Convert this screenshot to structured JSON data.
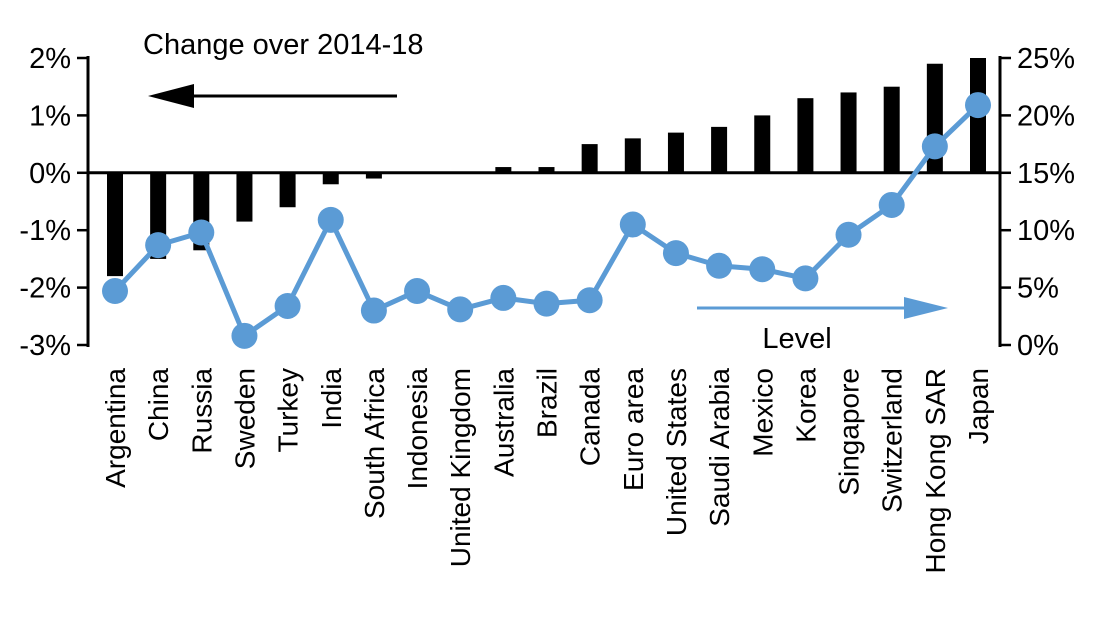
{
  "chart": {
    "background_color": "#ffffff",
    "bar_color": "#000000",
    "line_color": "#5B9BD5",
    "text_color": "#000000"
  },
  "chart_data": {
    "type": "bar+line",
    "title": "Change over 2014-18",
    "categories": [
      "Argentina",
      "China",
      "Russia",
      "Sweden",
      "Turkey",
      "India",
      "South Africa",
      "Indonesia",
      "United Kingdom",
      "Australia",
      "Brazil",
      "Canada",
      "Euro area",
      "United States",
      "Saudi Arabia",
      "Mexico",
      "Korea",
      "Singapore",
      "Switzerland",
      "Hong Kong SAR",
      "Japan"
    ],
    "series": [
      {
        "name": "Change over 2014-18",
        "type": "bar",
        "axis": "left",
        "color": "#000000",
        "values": [
          -1.8,
          -1.5,
          -1.35,
          -0.85,
          -0.6,
          -0.2,
          -0.1,
          0,
          0,
          0.1,
          0.1,
          0.5,
          0.6,
          0.7,
          0.8,
          1.0,
          1.3,
          1.4,
          1.5,
          1.9,
          2.0
        ]
      },
      {
        "name": "Level",
        "type": "line",
        "axis": "right",
        "color": "#5B9BD5",
        "values": [
          4.7,
          8.7,
          9.8,
          0.8,
          3.4,
          10.9,
          3.0,
          4.7,
          3.1,
          4.1,
          3.6,
          3.9,
          10.5,
          8.0,
          6.9,
          6.6,
          5.8,
          9.6,
          12.2,
          17.3,
          20.9
        ]
      }
    ],
    "left_axis": {
      "range": [
        -3,
        2
      ],
      "ticks": [
        {
          "label": "2%",
          "value": 2
        },
        {
          "label": "1%",
          "value": 1
        },
        {
          "label": "0%",
          "value": 0
        },
        {
          "label": "-1%",
          "value": -1
        },
        {
          "label": "-2%",
          "value": -2
        },
        {
          "label": "-3%",
          "value": -3
        }
      ]
    },
    "right_axis": {
      "range": [
        0,
        25
      ],
      "ticks": [
        {
          "label": "25%",
          "value": 25
        },
        {
          "label": "20%",
          "value": 20
        },
        {
          "label": "15%",
          "value": 15
        },
        {
          "label": "10%",
          "value": 10
        },
        {
          "label": "5%",
          "value": 5
        },
        {
          "label": "0%",
          "value": 0
        }
      ]
    },
    "annotations": {
      "bar_series_label": "Change over 2014-18",
      "line_series_label": "Level",
      "bar_arrow_direction": "left",
      "line_arrow_direction": "right"
    },
    "grid": false,
    "legend_position": "in-chart arrows"
  }
}
